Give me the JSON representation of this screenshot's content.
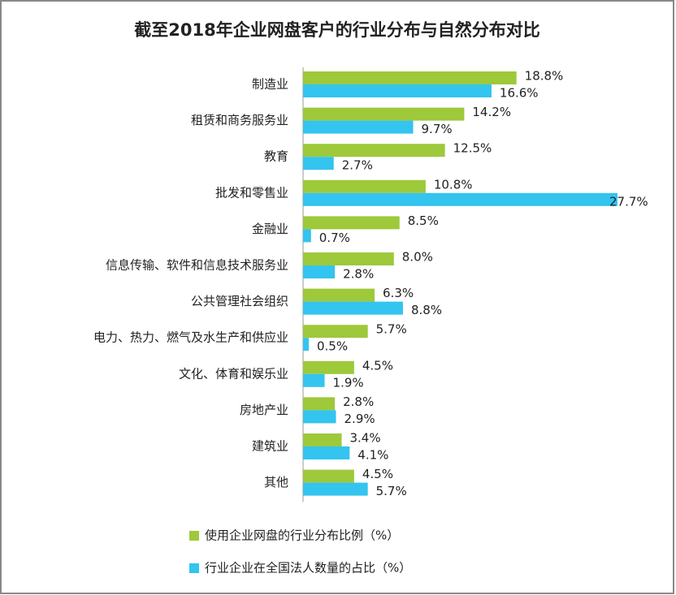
{
  "chart_data": {
    "type": "bar",
    "orientation": "horizontal",
    "title": "截至2018年企业网盘客户的行业分布与自然分布对比",
    "categories": [
      "制造业",
      "租赁和商务服务业",
      "教育",
      "批发和零售业",
      "金融业",
      "信息传输、软件和信息技术服务业",
      "公共管理社会组织",
      "电力、热力、燃气及水生产和供应业",
      "文化、体育和娱乐业",
      "房地产业",
      "建筑业",
      "其他"
    ],
    "series": [
      {
        "name": "使用企业网盘的行业分布比例（%）",
        "color": "#9dc93b",
        "values": [
          18.8,
          14.2,
          12.5,
          10.8,
          8.5,
          8.0,
          6.3,
          5.7,
          4.5,
          2.8,
          3.4,
          4.5
        ],
        "value_labels": [
          "18.8%",
          "14.2%",
          "12.5%",
          "10.8%",
          "8.5%",
          "8.0%",
          "6.3%",
          "5.7%",
          "4.5%",
          "2.8%",
          "3.4%",
          "4.5%"
        ]
      },
      {
        "name": "行业企业在全国法人数量的占比（%）",
        "color": "#33c4ef",
        "values": [
          16.6,
          9.7,
          2.7,
          27.7,
          0.7,
          2.8,
          8.8,
          0.5,
          1.9,
          2.9,
          4.1,
          5.7
        ],
        "value_labels": [
          "16.6%",
          "9.7%",
          "2.7%",
          "27.7%",
          "0.7%",
          "2.8%",
          "8.8%",
          "0.5%",
          "1.9%",
          "2.9%",
          "4.1%",
          "5.7%"
        ]
      }
    ],
    "legend": "bottom"
  }
}
